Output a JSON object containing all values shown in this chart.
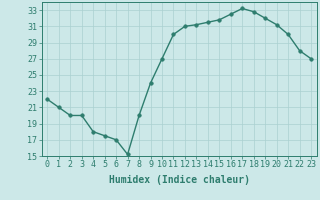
{
  "x": [
    0,
    1,
    2,
    3,
    4,
    5,
    6,
    7,
    8,
    9,
    10,
    11,
    12,
    13,
    14,
    15,
    16,
    17,
    18,
    19,
    20,
    21,
    22,
    23
  ],
  "y": [
    22,
    21,
    20,
    20,
    18,
    17.5,
    17,
    15.2,
    20,
    24,
    27,
    30,
    31,
    31.2,
    31.5,
    31.8,
    32.5,
    33.2,
    32.8,
    32,
    31.2,
    30,
    28,
    27
  ],
  "line_color": "#2e7d6e",
  "marker_color": "#2e7d6e",
  "bg_color": "#cce8e8",
  "grid_color": "#aad0d0",
  "xlabel": "Humidex (Indice chaleur)",
  "xlim": [
    -0.5,
    23.5
  ],
  "ylim": [
    15,
    34
  ],
  "yticks": [
    15,
    17,
    19,
    21,
    23,
    25,
    27,
    29,
    31,
    33
  ],
  "xticks": [
    0,
    1,
    2,
    3,
    4,
    5,
    6,
    7,
    8,
    9,
    10,
    11,
    12,
    13,
    14,
    15,
    16,
    17,
    18,
    19,
    20,
    21,
    22,
    23
  ],
  "xlabel_fontsize": 7,
  "tick_fontsize": 6,
  "line_width": 1.0,
  "marker_size": 2.5
}
